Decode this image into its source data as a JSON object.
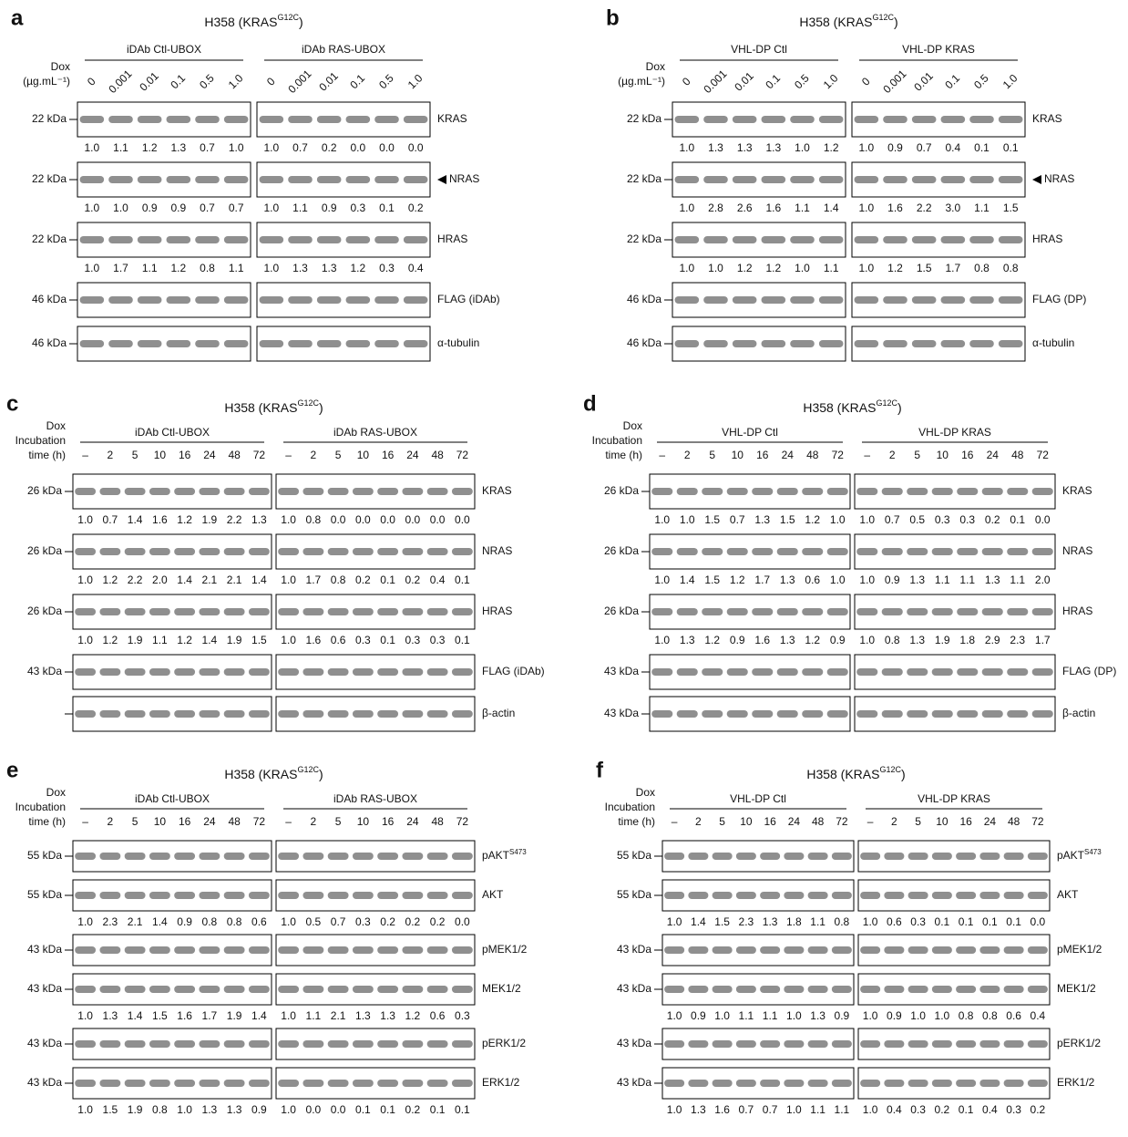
{
  "panels": [
    {
      "letter": "a",
      "title_main": "H358 (KRAS",
      "title_sup": "G12C",
      "title_end": ")",
      "dox_label": [
        "Dox",
        "(µg.mL⁻¹)"
      ],
      "groups": [
        {
          "name": "iDAb Ctl-UBOX",
          "lanes": [
            "0",
            "0.001",
            "0.01",
            "0.1",
            "0.5",
            "1.0"
          ]
        },
        {
          "name": "iDAb RAS-UBOX",
          "lanes": [
            "0",
            "0.001",
            "0.01",
            "0.1",
            "0.5",
            "1.0"
          ]
        }
      ],
      "rows": [
        {
          "kda": "22 kDa",
          "label": "KRAS",
          "quant": [
            [
              "1.0",
              "1.1",
              "1.2",
              "1.3",
              "0.7",
              "1.0"
            ],
            [
              "1.0",
              "0.7",
              "0.2",
              "0.0",
              "0.0",
              "0.0"
            ]
          ]
        },
        {
          "kda": "22 kDa",
          "label": "NRAS",
          "arrow": true,
          "quant": [
            [
              "1.0",
              "1.0",
              "0.9",
              "0.9",
              "0.7",
              "0.7"
            ],
            [
              "1.0",
              "1.1",
              "0.9",
              "0.3",
              "0.1",
              "0.2"
            ]
          ]
        },
        {
          "kda": "22 kDa",
          "label": "HRAS",
          "quant": [
            [
              "1.0",
              "1.7",
              "1.1",
              "1.2",
              "0.8",
              "1.1"
            ],
            [
              "1.0",
              "1.3",
              "1.3",
              "1.2",
              "0.3",
              "0.4"
            ]
          ]
        },
        {
          "kda": "46 kDa",
          "label": "FLAG (iDAb)"
        },
        {
          "kda": "46 kDa",
          "label": "α-tubulin"
        }
      ]
    },
    {
      "letter": "b",
      "title_main": "H358 (KRAS",
      "title_sup": "G12C",
      "title_end": ")",
      "dox_label": [
        "Dox",
        "(µg.mL⁻¹)"
      ],
      "groups": [
        {
          "name": "VHL-DP Ctl",
          "lanes": [
            "0",
            "0.001",
            "0.01",
            "0.1",
            "0.5",
            "1.0"
          ]
        },
        {
          "name": "VHL-DP KRAS",
          "lanes": [
            "0",
            "0.001",
            "0.01",
            "0.1",
            "0.5",
            "1.0"
          ]
        }
      ],
      "rows": [
        {
          "kda": "22 kDa",
          "label": "KRAS",
          "quant": [
            [
              "1.0",
              "1.3",
              "1.3",
              "1.3",
              "1.0",
              "1.2"
            ],
            [
              "1.0",
              "0.9",
              "0.7",
              "0.4",
              "0.1",
              "0.1"
            ]
          ]
        },
        {
          "kda": "22 kDa",
          "label": "NRAS",
          "arrow": true,
          "quant": [
            [
              "1.0",
              "2.8",
              "2.6",
              "1.6",
              "1.1",
              "1.4"
            ],
            [
              "1.0",
              "1.6",
              "2.2",
              "3.0",
              "1.1",
              "1.5"
            ]
          ]
        },
        {
          "kda": "22 kDa",
          "label": "HRAS",
          "quant": [
            [
              "1.0",
              "1.0",
              "1.2",
              "1.2",
              "1.0",
              "1.1"
            ],
            [
              "1.0",
              "1.2",
              "1.5",
              "1.7",
              "0.8",
              "0.8"
            ]
          ]
        },
        {
          "kda": "46 kDa",
          "label": "FLAG (DP)"
        },
        {
          "kda": "46 kDa",
          "label": "α-tubulin"
        }
      ]
    },
    {
      "letter": "c",
      "title_main": "H358 (KRAS",
      "title_sup": "G12C",
      "title_end": ")",
      "dox_label": [
        "Dox",
        "Incubation",
        "time (h)"
      ],
      "groups": [
        {
          "name": "iDAb Ctl-UBOX",
          "lanes": [
            "–",
            "2",
            "5",
            "10",
            "16",
            "24",
            "48",
            "72"
          ]
        },
        {
          "name": "iDAb RAS-UBOX",
          "lanes": [
            "–",
            "2",
            "5",
            "10",
            "16",
            "24",
            "48",
            "72"
          ]
        }
      ],
      "rows": [
        {
          "kda": "26 kDa",
          "label": "KRAS",
          "quant": [
            [
              "1.0",
              "0.7",
              "1.4",
              "1.6",
              "1.2",
              "1.9",
              "2.2",
              "1.3"
            ],
            [
              "1.0",
              "0.8",
              "0.0",
              "0.0",
              "0.0",
              "0.0",
              "0.0",
              "0.0"
            ]
          ]
        },
        {
          "kda": "26 kDa",
          "label": "NRAS",
          "quant": [
            [
              "1.0",
              "1.2",
              "2.2",
              "2.0",
              "1.4",
              "2.1",
              "2.1",
              "1.4"
            ],
            [
              "1.0",
              "1.7",
              "0.8",
              "0.2",
              "0.1",
              "0.2",
              "0.4",
              "0.1"
            ]
          ]
        },
        {
          "kda": "26 kDa",
          "label": "HRAS",
          "quant": [
            [
              "1.0",
              "1.2",
              "1.9",
              "1.1",
              "1.2",
              "1.4",
              "1.9",
              "1.5"
            ],
            [
              "1.0",
              "1.6",
              "0.6",
              "0.3",
              "0.1",
              "0.3",
              "0.3",
              "0.1"
            ]
          ]
        },
        {
          "kda": "43 kDa",
          "label": "FLAG (iDAb)"
        },
        {
          "kda": null,
          "label": "β-actin"
        }
      ]
    },
    {
      "letter": "d",
      "title_main": "H358 (KRAS",
      "title_sup": "G12C",
      "title_end": ")",
      "dox_label": [
        "Dox",
        "Incubation",
        "time (h)"
      ],
      "groups": [
        {
          "name": "VHL-DP Ctl",
          "lanes": [
            "–",
            "2",
            "5",
            "10",
            "16",
            "24",
            "48",
            "72"
          ]
        },
        {
          "name": "VHL-DP KRAS",
          "lanes": [
            "–",
            "2",
            "5",
            "10",
            "16",
            "24",
            "48",
            "72"
          ]
        }
      ],
      "rows": [
        {
          "kda": "26 kDa",
          "label": "KRAS",
          "quant": [
            [
              "1.0",
              "1.0",
              "1.5",
              "0.7",
              "1.3",
              "1.5",
              "1.2",
              "1.0"
            ],
            [
              "1.0",
              "0.7",
              "0.5",
              "0.3",
              "0.3",
              "0.2",
              "0.1",
              "0.0"
            ]
          ]
        },
        {
          "kda": "26 kDa",
          "label": "NRAS",
          "quant": [
            [
              "1.0",
              "1.4",
              "1.5",
              "1.2",
              "1.7",
              "1.3",
              "0.6",
              "1.0"
            ],
            [
              "1.0",
              "0.9",
              "1.3",
              "1.1",
              "1.1",
              "1.3",
              "1.1",
              "2.0"
            ]
          ]
        },
        {
          "kda": "26 kDa",
          "label": "HRAS",
          "quant": [
            [
              "1.0",
              "1.3",
              "1.2",
              "0.9",
              "1.6",
              "1.3",
              "1.2",
              "0.9"
            ],
            [
              "1.0",
              "0.8",
              "1.3",
              "1.9",
              "1.8",
              "2.9",
              "2.3",
              "1.7"
            ]
          ]
        },
        {
          "kda": "43 kDa",
          "label": "FLAG (DP)"
        },
        {
          "kda": "43 kDa",
          "label": "β-actin"
        }
      ]
    },
    {
      "letter": "e",
      "title_main": "H358 (KRAS",
      "title_sup": "G12C",
      "title_end": ")",
      "dox_label": [
        "Dox",
        "Incubation",
        "time (h)"
      ],
      "groups": [
        {
          "name": "iDAb Ctl-UBOX",
          "lanes": [
            "–",
            "2",
            "5",
            "10",
            "16",
            "24",
            "48",
            "72"
          ]
        },
        {
          "name": "iDAb RAS-UBOX",
          "lanes": [
            "–",
            "2",
            "5",
            "10",
            "16",
            "24",
            "48",
            "72"
          ]
        }
      ],
      "rows": [
        {
          "kda": "55 kDa",
          "label": "pAKT",
          "label_sup": "S473"
        },
        {
          "kda": "55 kDa",
          "label": "AKT",
          "quant": [
            [
              "1.0",
              "2.3",
              "2.1",
              "1.4",
              "0.9",
              "0.8",
              "0.8",
              "0.6"
            ],
            [
              "1.0",
              "0.5",
              "0.7",
              "0.3",
              "0.2",
              "0.2",
              "0.2",
              "0.0"
            ]
          ]
        },
        {
          "kda": "43 kDa",
          "label": "pMEK1/2"
        },
        {
          "kda": "43 kDa",
          "label": "MEK1/2",
          "quant": [
            [
              "1.0",
              "1.3",
              "1.4",
              "1.5",
              "1.6",
              "1.7",
              "1.9",
              "1.4"
            ],
            [
              "1.0",
              "1.1",
              "2.1",
              "1.3",
              "1.3",
              "1.2",
              "0.6",
              "0.3"
            ]
          ]
        },
        {
          "kda": "43 kDa",
          "label": "pERK1/2"
        },
        {
          "kda": "43 kDa",
          "label": "ERK1/2",
          "quant": [
            [
              "1.0",
              "1.5",
              "1.9",
              "0.8",
              "1.0",
              "1.3",
              "1.3",
              "0.9"
            ],
            [
              "1.0",
              "0.0",
              "0.0",
              "0.1",
              "0.1",
              "0.2",
              "0.1",
              "0.1"
            ]
          ]
        }
      ]
    },
    {
      "letter": "f",
      "title_main": "H358 (KRAS",
      "title_sup": "G12C",
      "title_end": ")",
      "dox_label": [
        "Dox",
        "Incubation",
        "time (h)"
      ],
      "groups": [
        {
          "name": "VHL-DP Ctl",
          "lanes": [
            "–",
            "2",
            "5",
            "10",
            "16",
            "24",
            "48",
            "72"
          ]
        },
        {
          "name": "VHL-DP KRAS",
          "lanes": [
            "–",
            "2",
            "5",
            "10",
            "16",
            "24",
            "48",
            "72"
          ]
        }
      ],
      "rows": [
        {
          "kda": "55 kDa",
          "label": "pAKT",
          "label_sup": "S473"
        },
        {
          "kda": "55 kDa",
          "label": "AKT",
          "quant": [
            [
              "1.0",
              "1.4",
              "1.5",
              "2.3",
              "1.3",
              "1.8",
              "1.1",
              "0.8"
            ],
            [
              "1.0",
              "0.6",
              "0.3",
              "0.1",
              "0.1",
              "0.1",
              "0.1",
              "0.0"
            ]
          ]
        },
        {
          "kda": "43 kDa",
          "label": "pMEK1/2"
        },
        {
          "kda": "43 kDa",
          "label": "MEK1/2",
          "quant": [
            [
              "1.0",
              "0.9",
              "1.0",
              "1.1",
              "1.1",
              "1.0",
              "1.3",
              "0.9"
            ],
            [
              "1.0",
              "0.9",
              "1.0",
              "1.0",
              "0.8",
              "0.8",
              "0.6",
              "0.4"
            ]
          ]
        },
        {
          "kda": "43 kDa",
          "label": "pERK1/2"
        },
        {
          "kda": "43 kDa",
          "label": "ERK1/2",
          "quant": [
            [
              "1.0",
              "1.3",
              "1.6",
              "0.7",
              "0.7",
              "1.0",
              "1.1",
              "1.1"
            ],
            [
              "1.0",
              "0.4",
              "0.3",
              "0.2",
              "0.1",
              "0.4",
              "0.3",
              "0.2"
            ]
          ]
        }
      ]
    }
  ]
}
